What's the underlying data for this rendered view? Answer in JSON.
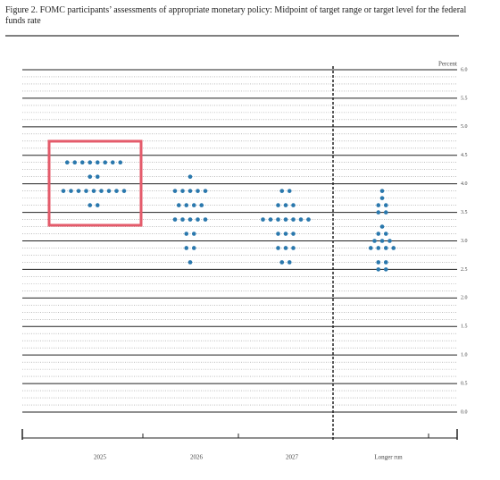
{
  "chart_data": {
    "type": "dot",
    "title": "Figure 2. FOMC participants’ assessments of appropriate monetary policy: Midpoint of target range or target level for the federal funds rate",
    "y_label": "Percent",
    "categories": [
      "2025",
      "2026",
      "2027",
      "Longer run"
    ],
    "values": [
      [
        4.375,
        4.125,
        3.875,
        3.625
      ],
      [
        4.125,
        3.875,
        3.625,
        3.375,
        3.125,
        2.875,
        2.625
      ],
      [
        3.875,
        3.625,
        3.375,
        3.125,
        2.875,
        2.625
      ],
      [
        3.875,
        3.75,
        3.625,
        3.5,
        3.25,
        3.125,
        3.0,
        2.875,
        2.625,
        2.5
      ]
    ],
    "counts": [
      [
        8,
        2,
        9,
        2
      ],
      [
        1,
        5,
        4,
        5,
        2,
        2,
        1
      ],
      [
        2,
        3,
        7,
        3,
        3,
        2
      ],
      [
        1,
        1,
        2,
        2,
        1,
        2,
        3,
        4,
        2,
        2
      ]
    ],
    "color": "#2a78ad",
    "ylim": [
      0,
      6
    ],
    "yticks": [
      {
        "value": 0,
        "label": "0.0"
      },
      0.5,
      {
        "value": 1,
        "label": "1.0"
      },
      1.5,
      {
        "value": 2,
        "label": "2.0"
      },
      2.5,
      {
        "value": 3,
        "label": "3.0"
      },
      3.5,
      {
        "value": 4,
        "label": "4.0"
      },
      4.5,
      {
        "value": 5,
        "label": "5.0"
      },
      5.5,
      {
        "value": 6,
        "label": "6.0"
      }
    ],
    "grid": true
  }
}
